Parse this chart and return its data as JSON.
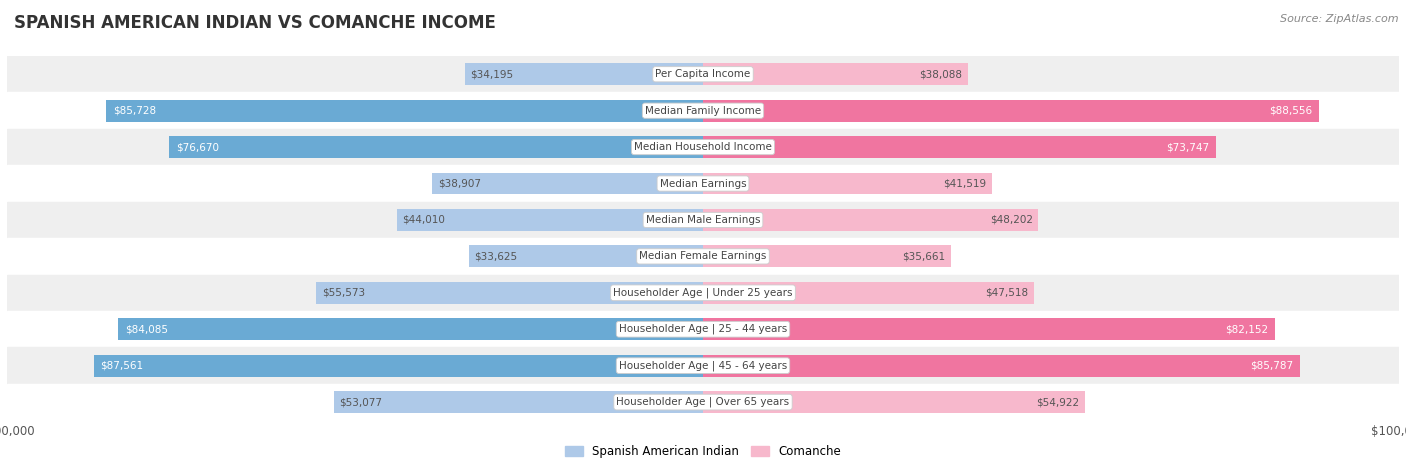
{
  "title": "SPANISH AMERICAN INDIAN VS COMANCHE INCOME",
  "source": "Source: ZipAtlas.com",
  "categories": [
    "Per Capita Income",
    "Median Family Income",
    "Median Household Income",
    "Median Earnings",
    "Median Male Earnings",
    "Median Female Earnings",
    "Householder Age | Under 25 years",
    "Householder Age | 25 - 44 years",
    "Householder Age | 45 - 64 years",
    "Householder Age | Over 65 years"
  ],
  "left_values": [
    34195,
    85728,
    76670,
    38907,
    44010,
    33625,
    55573,
    84085,
    87561,
    53077
  ],
  "right_values": [
    38088,
    88556,
    73747,
    41519,
    48202,
    35661,
    47518,
    82152,
    85787,
    54922
  ],
  "left_labels": [
    "$34,195",
    "$85,728",
    "$76,670",
    "$38,907",
    "$44,010",
    "$33,625",
    "$55,573",
    "$84,085",
    "$87,561",
    "$53,077"
  ],
  "right_labels": [
    "$38,088",
    "$88,556",
    "$73,747",
    "$41,519",
    "$48,202",
    "$35,661",
    "$47,518",
    "$82,152",
    "$85,787",
    "$54,922"
  ],
  "left_color_light": "#aec9e8",
  "left_color_dark": "#6aaad4",
  "right_color_light": "#f7b8cc",
  "right_color_dark": "#f075a0",
  "left_label_on_bar_color": "#ffffff",
  "right_label_on_bar_color": "#ffffff",
  "left_label_off_bar_color": "#555555",
  "right_label_off_bar_color": "#555555",
  "max_value": 100000,
  "left_legend": "Spanish American Indian",
  "right_legend": "Comanche",
  "row_bg_even": "#efefef",
  "row_bg_odd": "#ffffff",
  "category_box_color": "#ffffff",
  "category_text_color": "#444444",
  "title_color": "#333333",
  "source_color": "#888888",
  "bar_height": 0.6,
  "dark_threshold": 60000
}
